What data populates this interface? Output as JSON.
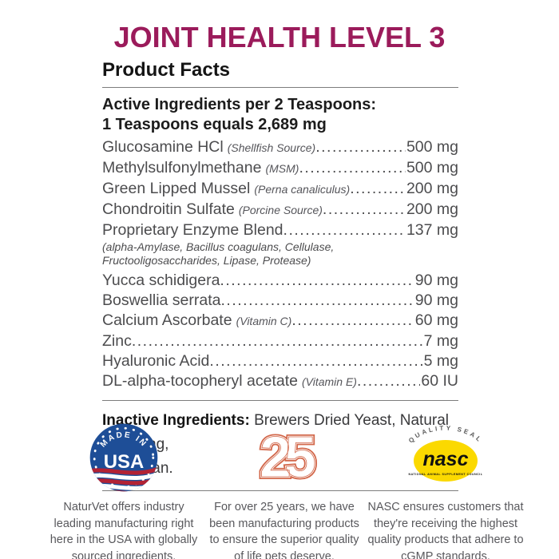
{
  "title": "JOINT HEALTH LEVEL 3",
  "product_facts": {
    "heading": "Product Facts",
    "serving_line1": "Active Ingredients per 2 Teaspoons:",
    "serving_line2": "1 Teaspoons equals 2,689 mg",
    "ingredients": [
      {
        "name": "Glucosamine HCl",
        "note": "(Shellfish Source)",
        "amount": "500 mg"
      },
      {
        "name": "Methylsulfonylmethane",
        "note": "(MSM)",
        "amount": "500 mg"
      },
      {
        "name": "Green Lipped Mussel",
        "note": "(Perna canaliculus)",
        "amount": "200 mg"
      },
      {
        "name": "Chondroitin Sulfate",
        "note": "(Porcine Source)",
        "amount": "200 mg"
      },
      {
        "name": "Proprietary Enzyme Blend",
        "note": "",
        "amount": "137 mg",
        "sub_lines": [
          "(alpha-Amylase, Bacillus coagulans, Cellulase,",
          "Fructooligosaccharides, Lipase, Protease)"
        ]
      },
      {
        "name": "Yucca schidigera",
        "note": "",
        "amount": "90 mg"
      },
      {
        "name": "Boswellia serrata",
        "note": "",
        "amount": "90 mg"
      },
      {
        "name": "Calcium Ascorbate",
        "note": "(Vitamin C)",
        "amount": "60 mg"
      },
      {
        "name": "Zinc",
        "note": "",
        "amount": "7 mg"
      },
      {
        "name": "Hyaluronic Acid",
        "note": "",
        "amount": "5 mg"
      },
      {
        "name": "DL-alpha-tocopheryl acetate",
        "note": "(Vitamin E)",
        "amount": "60 IU"
      }
    ],
    "inactive": {
      "label": "Inactive Ingredients:",
      "line1": "Brewers Dried Yeast, Natural Flavoring,",
      "line2": "Rice Bran."
    }
  },
  "badges": {
    "usa": {
      "arc_text": "MADE IN",
      "main_text": "USA",
      "caption": "NaturVet offers industry leading manufacturing right here in the USA with globally sourced ingredients."
    },
    "anniversary": {
      "main_text": "25",
      "caption": "For over 25 years, we have been manufacturing products to ensure the superior quality of life pets deserve."
    },
    "nasc": {
      "arc_text": "QUALITY SEAL",
      "main_text": "nasc",
      "sub_text": "NATIONAL ANIMAL SUPPLEMENT COUNCIL",
      "caption": "NASC ensures customers that they're receiving the highest quality products that adhere to cGMP standards."
    }
  },
  "colors": {
    "title_magenta": "#9B1B5B",
    "ingredient_gray": "#4c4c4e",
    "anniversary_orange": "#D2674A",
    "nasc_yellow": "#FBD900",
    "usa_blue": "#1E4E97",
    "flag_red": "#B22234"
  }
}
